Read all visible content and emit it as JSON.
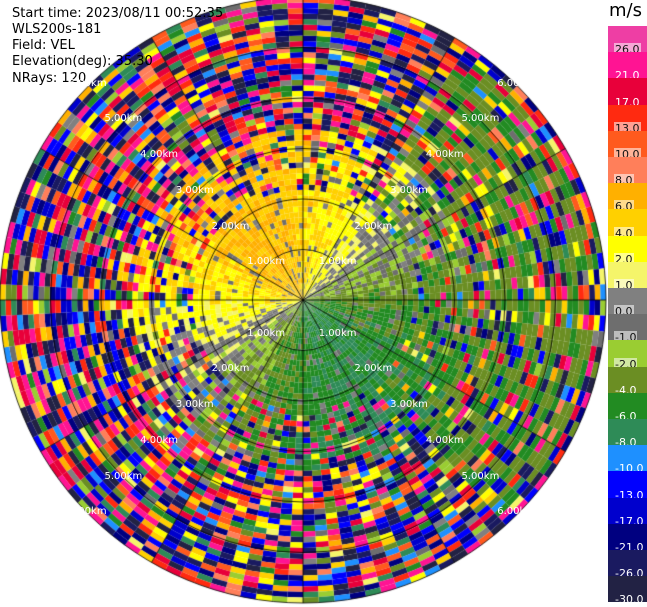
{
  "header": {
    "start_time": "Start time: 2023/08/11 00:52:35",
    "instrument": "WLS200s-181",
    "field": "Field: VEL",
    "elevation": "Elevation(deg): 35.30",
    "nrays": "NRays: 120"
  },
  "colorbar": {
    "unit": "m/s",
    "ticks": [
      "26.0",
      "21.0",
      "17.0",
      "13.0",
      "10.0",
      "8.0",
      "6.0",
      "4.0",
      "2.0",
      "1.0",
      "0.0",
      "-1.0",
      "-2.0",
      "-4.0",
      "-6.0",
      "-8.0",
      "-10.0",
      "-13.0",
      "-17.0",
      "-21.0",
      "-26.0",
      "-30.0"
    ],
    "colors": [
      "#ee3ea4",
      "#ff1493",
      "#e8003a",
      "#ff2a10",
      "#ff5a1e",
      "#ff7f5a",
      "#ffb000",
      "#ffd000",
      "#ffff00",
      "#f5f56a",
      "#808080",
      "#6e6e6e",
      "#9acd32",
      "#6b8e23",
      "#228b22",
      "#2e8b57",
      "#1e90ff",
      "#0000ff",
      "#0000cd",
      "#000080",
      "#1a1a60",
      "#222244"
    ]
  },
  "chart_data": {
    "type": "ppi",
    "field": "VEL",
    "units": "m/s",
    "nrays": 120,
    "range_rings_km": [
      1.0,
      2.0,
      3.0,
      4.0,
      5.0,
      6.0
    ],
    "ring_labels": [
      "1.00km",
      "2.00km",
      "3.00km",
      "4.00km",
      "5.00km",
      "6.00km"
    ],
    "vmin": -30.0,
    "vmax": 26.0,
    "max_range_km": 6.0,
    "pattern": {
      "near_north_west": "positive (1 to 8 m/s), orange/yellow",
      "near_south_east": "negative (-1 to -6 m/s), green",
      "far_range": "noisy / random values",
      "eastern_sector_far": "negative, olive green"
    }
  }
}
